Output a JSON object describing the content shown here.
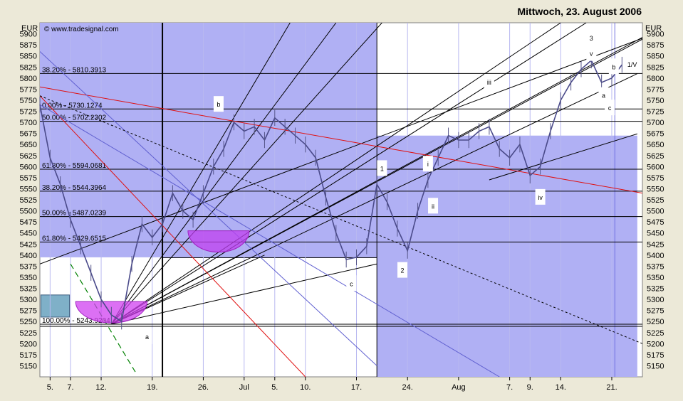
{
  "header": {
    "date": "Mittwoch, 23. August 2006",
    "copyright": "© www.tradesignal.com",
    "currency_left": "EUR",
    "currency_right": "EUR"
  },
  "chart_data": {
    "type": "line",
    "ylim": [
      5125,
      5925
    ],
    "yticks": [
      5150,
      5175,
      5200,
      5225,
      5250,
      5275,
      5300,
      5325,
      5350,
      5375,
      5400,
      5425,
      5450,
      5475,
      5500,
      5525,
      5550,
      5575,
      5600,
      5625,
      5650,
      5675,
      5700,
      5725,
      5750,
      5775,
      5800,
      5825,
      5850,
      5875,
      5900
    ],
    "xdomain": [
      0,
      59
    ],
    "xticks": [
      {
        "label": "5.",
        "i": 1
      },
      {
        "label": "7.",
        "i": 3
      },
      {
        "label": "12.",
        "i": 6
      },
      {
        "label": "19.",
        "i": 11
      },
      {
        "label": "26.",
        "i": 16
      },
      {
        "label": "Jul",
        "i": 20
      },
      {
        "label": "5.",
        "i": 23
      },
      {
        "label": "10.",
        "i": 26
      },
      {
        "label": "17.",
        "i": 31
      },
      {
        "label": "24.",
        "i": 36
      },
      {
        "label": "Aug",
        "i": 41
      },
      {
        "label": "7.",
        "i": 46
      },
      {
        "label": "9.",
        "i": 48
      },
      {
        "label": "14.",
        "i": 51
      },
      {
        "label": "21.",
        "i": 56
      }
    ],
    "series": [
      {
        "x": [
          0,
          1,
          2,
          3,
          4,
          5,
          6,
          7,
          8,
          9,
          10,
          11,
          12,
          13,
          14,
          15,
          16,
          17,
          18,
          19,
          20,
          21,
          22,
          23,
          24,
          25,
          26,
          27,
          28,
          29,
          30,
          31,
          32,
          33,
          34,
          35,
          36,
          37,
          38,
          39,
          40,
          41,
          42,
          43,
          44,
          45,
          46,
          47,
          48,
          49,
          50,
          51,
          52,
          53,
          54,
          55,
          56,
          57
        ],
        "values": [
          5740,
          5620,
          5560,
          5480,
          5420,
          5360,
          5300,
          5265,
          5250,
          5380,
          5470,
          5440,
          5470,
          5540,
          5500,
          5480,
          5540,
          5600,
          5640,
          5700,
          5680,
          5690,
          5660,
          5710,
          5690,
          5670,
          5650,
          5620,
          5530,
          5450,
          5390,
          5395,
          5420,
          5560,
          5520,
          5460,
          5410,
          5500,
          5570,
          5620,
          5670,
          5660,
          5660,
          5680,
          5690,
          5640,
          5620,
          5650,
          5580,
          5600,
          5680,
          5750,
          5790,
          5820,
          5840,
          5790,
          5800,
          5830
        ]
      }
    ],
    "fib_levels": [
      {
        "label": "38.20% - 5810.3913",
        "value": 5810.39
      },
      {
        "label": "0.00% - 5730.1274",
        "value": 5730.13
      },
      {
        "label": "50.00% - 5702.2302",
        "value": 5702.23
      },
      {
        "label": "61.80% - 5594.0681",
        "value": 5594.07
      },
      {
        "label": "38.20% - 5544.3964",
        "value": 5544.4
      },
      {
        "label": "50.00% - 5487.0239",
        "value": 5487.02
      },
      {
        "label": "61.80% - 5429.6515",
        "value": 5429.65
      },
      {
        "label": "100.00% - 5243.9204",
        "value": 5243.92
      }
    ],
    "wave_labels": [
      {
        "text": "a",
        "i": 10.5,
        "v": 5215
      },
      {
        "text": "b",
        "i": 17.5,
        "v": 5740
      },
      {
        "text": "c",
        "i": 30.5,
        "v": 5335
      },
      {
        "text": "1",
        "i": 33.5,
        "v": 5595
      },
      {
        "text": "2",
        "i": 35.5,
        "v": 5365
      },
      {
        "text": "i",
        "i": 38,
        "v": 5605
      },
      {
        "text": "ii",
        "i": 38.5,
        "v": 5510
      },
      {
        "text": "iii",
        "i": 44,
        "v": 5790
      },
      {
        "text": "iv",
        "i": 49,
        "v": 5530
      },
      {
        "text": "3",
        "i": 54,
        "v": 5890
      },
      {
        "text": "v",
        "i": 54,
        "v": 5855
      },
      {
        "text": "a",
        "i": 55.2,
        "v": 5760
      },
      {
        "text": "b",
        "i": 56.2,
        "v": 5825
      },
      {
        "text": "c",
        "i": 55.8,
        "v": 5732
      },
      {
        "text": "1/V",
        "i": 58,
        "v": 5830
      }
    ]
  }
}
